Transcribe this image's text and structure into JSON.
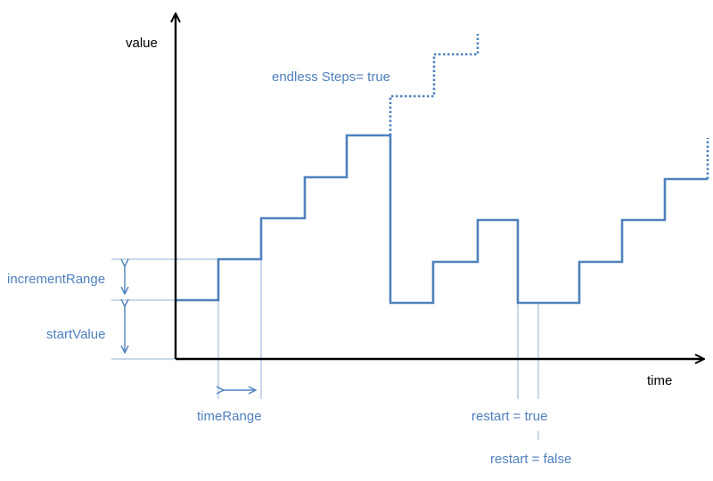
{
  "diagram": {
    "y_axis_label": "value",
    "x_axis_label": "time",
    "annotations": {
      "increment_range": "incrementRange",
      "start_value": "startValue",
      "time_range": "timeRange",
      "endless_steps": "endless Steps= true",
      "restart_true": "restart = true",
      "restart_false": "restart = false"
    },
    "colors": {
      "axis": "#000000",
      "step_line": "#4f81bd",
      "guide_line": "#95b3d7",
      "annotation_text": "#4f81bd"
    }
  }
}
